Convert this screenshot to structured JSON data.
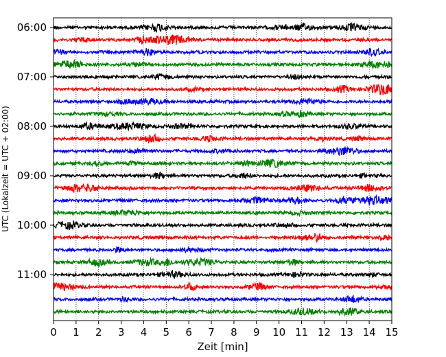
{
  "chart_data": {
    "type": "line",
    "title": "",
    "xlabel": "Zeit  [min]",
    "ylabel": "UTC (Lokalzeit = UTC + 02:00)",
    "xlim": [
      0,
      15
    ],
    "x_ticks": [
      "0",
      "1",
      "2",
      "3",
      "4",
      "5",
      "6",
      "7",
      "8",
      "9",
      "10",
      "11",
      "12",
      "13",
      "14",
      "15"
    ],
    "y_ticks": [
      "06:00",
      "07:00",
      "08:00",
      "09:00",
      "10:00",
      "11:00"
    ],
    "grid": "vertical dotted lines at each minute",
    "legend": "none",
    "trace_interval_min": 15,
    "series": [
      {
        "start": "06:00",
        "color": "#000000"
      },
      {
        "start": "06:15",
        "color": "#ff0000"
      },
      {
        "start": "06:30",
        "color": "#0000ff"
      },
      {
        "start": "06:45",
        "color": "#008000"
      },
      {
        "start": "07:00",
        "color": "#000000"
      },
      {
        "start": "07:15",
        "color": "#ff0000"
      },
      {
        "start": "07:30",
        "color": "#0000ff"
      },
      {
        "start": "07:45",
        "color": "#008000"
      },
      {
        "start": "08:00",
        "color": "#000000"
      },
      {
        "start": "08:15",
        "color": "#ff0000"
      },
      {
        "start": "08:30",
        "color": "#0000ff"
      },
      {
        "start": "08:45",
        "color": "#008000"
      },
      {
        "start": "09:00",
        "color": "#000000"
      },
      {
        "start": "09:15",
        "color": "#ff0000"
      },
      {
        "start": "09:30",
        "color": "#0000ff"
      },
      {
        "start": "09:45",
        "color": "#008000"
      },
      {
        "start": "10:00",
        "color": "#000000"
      },
      {
        "start": "10:15",
        "color": "#ff0000"
      },
      {
        "start": "10:30",
        "color": "#0000ff"
      },
      {
        "start": "10:45",
        "color": "#008000"
      },
      {
        "start": "11:00",
        "color": "#000000"
      },
      {
        "start": "11:15",
        "color": "#ff0000"
      },
      {
        "start": "11:30",
        "color": "#0000ff"
      },
      {
        "start": "11:45",
        "color": "#008000"
      }
    ]
  }
}
